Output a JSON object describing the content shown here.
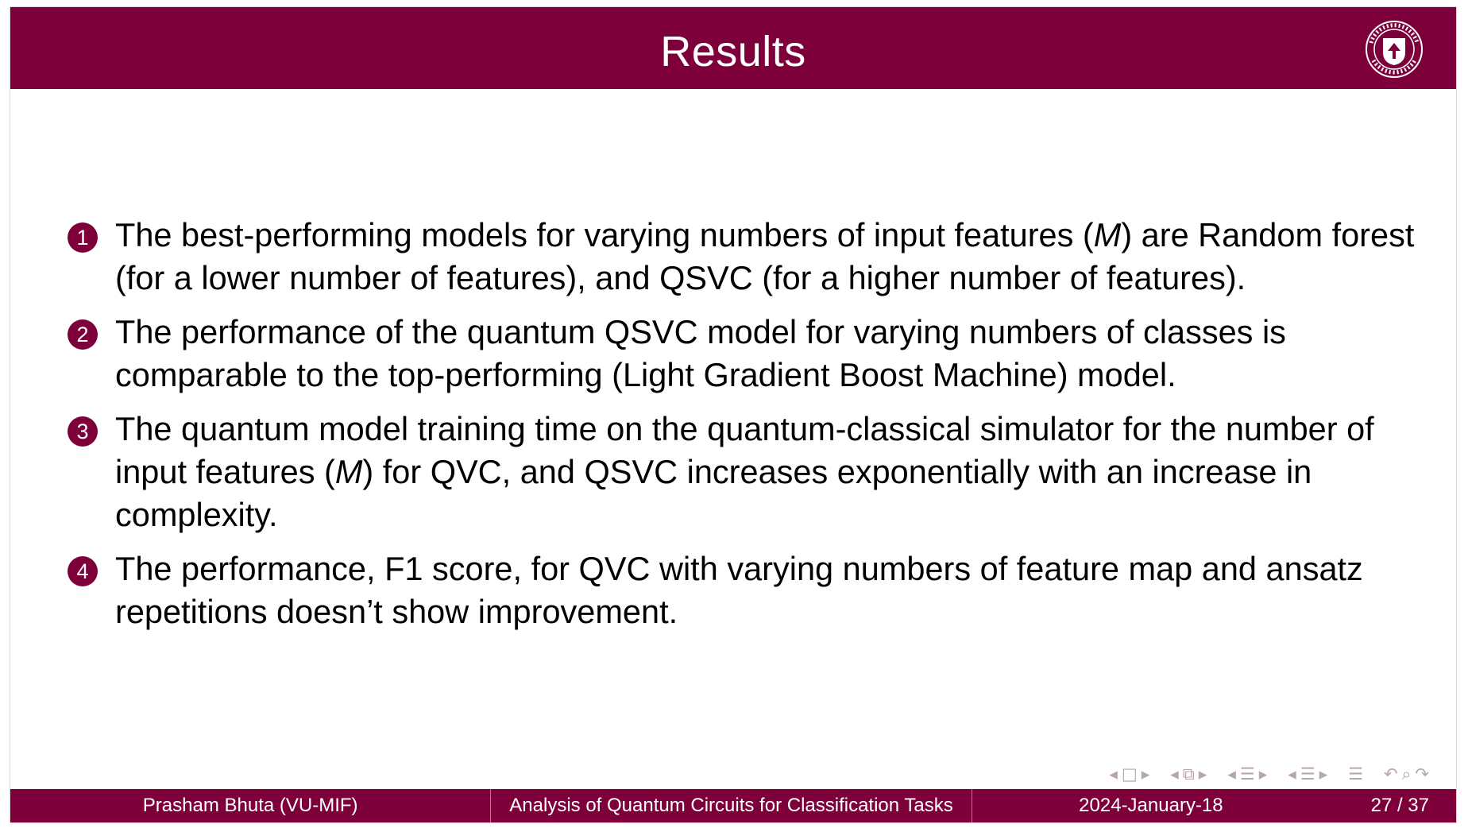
{
  "slide": {
    "title": "Results"
  },
  "items": [
    {
      "number": "1",
      "parts": [
        "The best-performing models for varying numbers of input features (",
        "M",
        ") are Random forest (for a lower number of features), and QSVC (for a higher number of features)."
      ]
    },
    {
      "number": "2",
      "text": "The performance of the quantum QSVC model for varying numbers of classes is comparable to the top-performing (Light Gradient Boost Machine) model."
    },
    {
      "number": "3",
      "parts": [
        "The quantum model training time on the quantum-classical simulator for the number of input features (",
        "M",
        ") for QVC, and QSVC increases exponentially with an increase in complexity."
      ]
    },
    {
      "number": "4",
      "text": "The performance, F1 score, for QVC with varying numbers of feature map and ansatz repetitions doesn’t show improvement."
    }
  ],
  "footer": {
    "author": "Prasham Bhuta  (VU-MIF)",
    "title": "Analysis of Quantum Circuits for Classification Tasks",
    "date": "2024-January-18",
    "page": "27 / 37"
  },
  "icons": {
    "logo": "university-seal-icon",
    "nav": [
      "frame-prev-icon",
      "frame-icon",
      "frame-next-icon",
      "subsection-prev-icon",
      "subsection-icon",
      "subsection-next-icon",
      "section-prev-icon",
      "section-icon",
      "section-next-icon",
      "appendix-prev-icon",
      "appendix-icon",
      "appendix-next-icon",
      "toc-icon",
      "back-icon",
      "search-icon",
      "forward-icon"
    ]
  },
  "colors": {
    "theme": "#7d003b",
    "text": "#000000",
    "nav": "#b9a5b1"
  }
}
